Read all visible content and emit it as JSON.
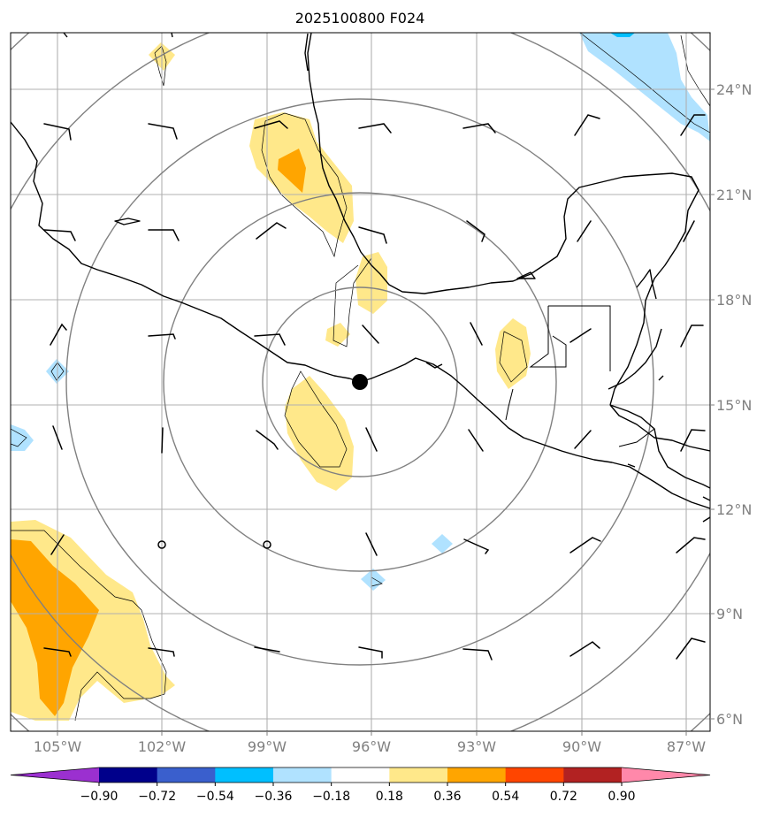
{
  "title": "2025100800 F024",
  "lon_labels": [
    "105°W",
    "102°W",
    "99°W",
    "96°W",
    "93°W",
    "90°W",
    "87°W"
  ],
  "lat_labels": [
    "24°N",
    "21°N",
    "18°N",
    "15°N",
    "12°N",
    "9°N",
    "6°N"
  ],
  "colorbar": {
    "tick_labels": [
      "−0.90",
      "−0.72",
      "−0.54",
      "−0.36",
      "−0.18",
      "0.18",
      "0.36",
      "0.54",
      "0.72",
      "0.90"
    ],
    "colors": [
      "#9b30d0",
      "#00008b",
      "#3a5fcd",
      "#00bfff",
      "#b0e2ff",
      "#ffffff",
      "#ffe88a",
      "#ffa500",
      "#ff4500",
      "#b22222",
      "#ff88aa"
    ]
  },
  "colors": {
    "light_yellow": "#ffe88a",
    "orange": "#ffa500",
    "light_blue": "#b0e2ff",
    "deep_sky_blue": "#00bfff",
    "grid": "#b0b0b0",
    "range_rings": "#808080"
  },
  "center_marker": {
    "lon": -96.3,
    "lat": 15.6
  }
}
